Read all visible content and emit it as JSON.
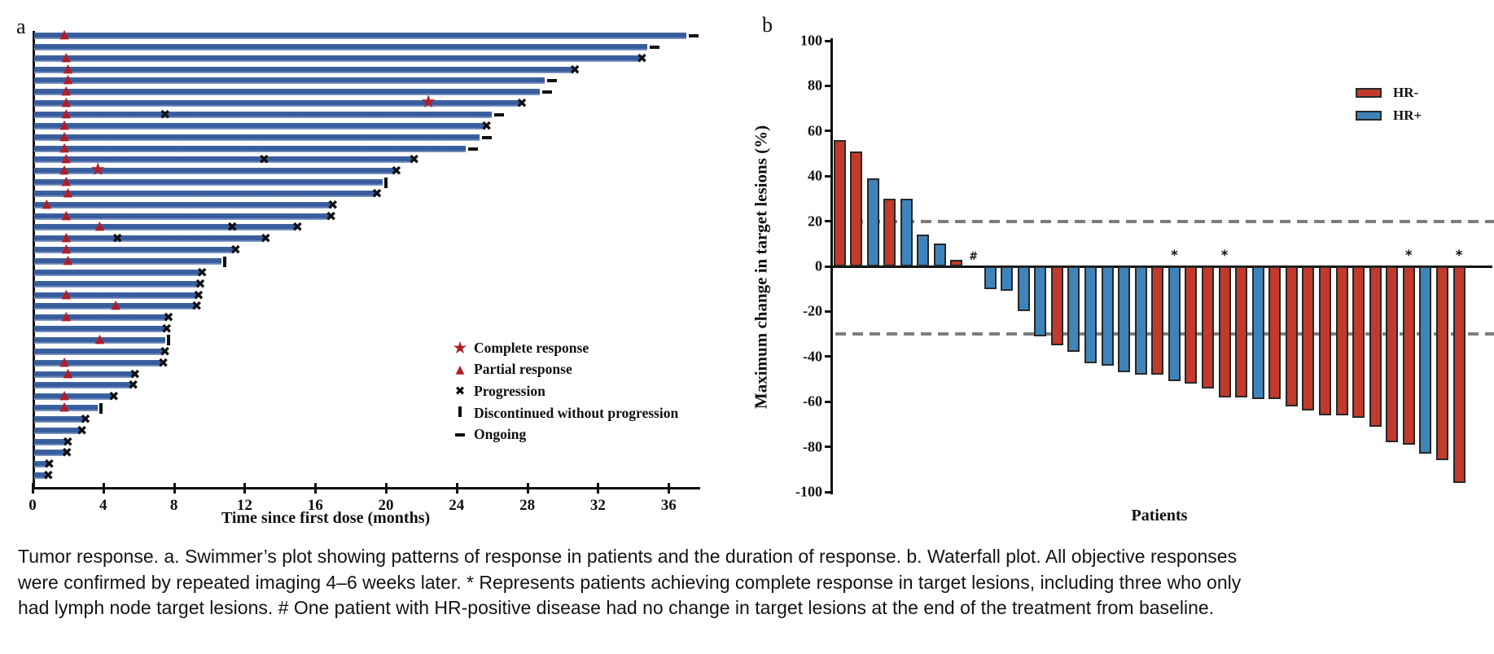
{
  "panel_a": {
    "label": "a",
    "xlabel": "Time since first dose (months)",
    "x_ticks": [
      0,
      4,
      8,
      12,
      16,
      20,
      24,
      28,
      32,
      36
    ],
    "bar_color": "#33589b",
    "marker_color_response": "#b01e28",
    "marker_color_event": "#111111",
    "legend": [
      {
        "glyph": "★",
        "label": "Complete response"
      },
      {
        "glyph": "▲",
        "label": "Partial response"
      },
      {
        "glyph": "✖",
        "label": "Progression"
      },
      {
        "glyph": "bar",
        "label": "Discontinued without progression"
      },
      {
        "glyph": "dash",
        "label": "Ongoing"
      }
    ]
  },
  "panel_b": {
    "label": "b",
    "ylabel": "Maximum change in target lesions (%)",
    "xlabel": "Patients",
    "y_ticks": [
      100,
      80,
      60,
      40,
      20,
      0,
      -20,
      -40,
      -60,
      -80,
      -100
    ],
    "reference_lines": [
      20,
      -30
    ],
    "colors": {
      "HR-": "#c13a2b",
      "HR+": "#3e84ba"
    },
    "legend": [
      {
        "label": "HR-",
        "color": "#c13a2b"
      },
      {
        "label": "HR+",
        "color": "#3e84ba"
      }
    ]
  },
  "caption": {
    "text": "Tumor response. a. Swimmer’s plot showing patterns of response in patients and the duration of response. b. Waterfall plot. All objective responses were confirmed by repeated imaging 4–6 weeks later. * Represents patients achieving complete response in target lesions, including three who only had lymph node target lesions. # One patient with HR-positive disease had no change in target lesions at the end of the treatment from baseline."
  },
  "chart_data": [
    {
      "type": "bar",
      "subtype": "swimmer",
      "title": "Swimmer's plot",
      "xlabel": "Time since first dose (months)",
      "xlim": [
        0,
        38
      ],
      "unit": "months",
      "patients": [
        {
          "duration": 37.0,
          "partial_response_at": 1.8,
          "end_marker": "ongoing"
        },
        {
          "duration": 34.8,
          "end_marker": "ongoing"
        },
        {
          "duration": 34.4,
          "partial_response_at": 1.9,
          "end_marker": "progression"
        },
        {
          "duration": 30.6,
          "partial_response_at": 2.0,
          "end_marker": "progression"
        },
        {
          "duration": 29.0,
          "partial_response_at": 2.0,
          "end_marker": "ongoing"
        },
        {
          "duration": 28.7,
          "partial_response_at": 1.9,
          "end_marker": "ongoing"
        },
        {
          "duration": 27.6,
          "partial_response_at": 1.9,
          "complete_response_at": 22.4,
          "end_marker": "progression"
        },
        {
          "duration": 26.0,
          "partial_response_at": 1.9,
          "progression_at": [
            7.5
          ],
          "end_marker": "ongoing"
        },
        {
          "duration": 25.6,
          "partial_response_at": 1.8,
          "end_marker": "progression"
        },
        {
          "duration": 25.3,
          "partial_response_at": 1.8,
          "end_marker": "ongoing"
        },
        {
          "duration": 24.5,
          "partial_response_at": 1.8,
          "end_marker": "ongoing"
        },
        {
          "duration": 21.5,
          "partial_response_at": 1.9,
          "progression_at": [
            13.1
          ],
          "end_marker": "progression"
        },
        {
          "duration": 20.5,
          "partial_response_at": 1.8,
          "complete_response_at": 3.7,
          "end_marker": "progression"
        },
        {
          "duration": 19.8,
          "partial_response_at": 1.9,
          "end_marker": "discontinued"
        },
        {
          "duration": 19.4,
          "partial_response_at": 2.0,
          "end_marker": "progression"
        },
        {
          "duration": 16.9,
          "partial_response_at": 0.8,
          "end_marker": "progression"
        },
        {
          "duration": 16.8,
          "partial_response_at": 1.9,
          "end_marker": "progression"
        },
        {
          "duration": 14.9,
          "partial_response_at": 3.8,
          "progression_at": [
            11.3
          ],
          "end_marker": "progression"
        },
        {
          "duration": 13.1,
          "partial_response_at": 1.9,
          "progression_at": [
            4.8
          ],
          "end_marker": "progression"
        },
        {
          "duration": 11.4,
          "partial_response_at": 1.9,
          "end_marker": "progression"
        },
        {
          "duration": 10.7,
          "partial_response_at": 2.0,
          "end_marker": "discontinued"
        },
        {
          "duration": 9.5,
          "end_marker": "progression"
        },
        {
          "duration": 9.4,
          "end_marker": "progression"
        },
        {
          "duration": 9.3,
          "partial_response_at": 1.9,
          "end_marker": "progression"
        },
        {
          "duration": 9.2,
          "partial_response_at": 4.7,
          "end_marker": "progression"
        },
        {
          "duration": 7.6,
          "partial_response_at": 1.9,
          "end_marker": "progression"
        },
        {
          "duration": 7.5,
          "end_marker": "progression"
        },
        {
          "duration": 7.5,
          "partial_response_at": 3.8,
          "end_marker": "discontinued"
        },
        {
          "duration": 7.4,
          "end_marker": "progression"
        },
        {
          "duration": 7.3,
          "partial_response_at": 1.8,
          "end_marker": "progression"
        },
        {
          "duration": 5.7,
          "partial_response_at": 2.0,
          "end_marker": "progression"
        },
        {
          "duration": 5.6,
          "end_marker": "progression"
        },
        {
          "duration": 4.5,
          "partial_response_at": 1.8,
          "end_marker": "progression"
        },
        {
          "duration": 3.7,
          "partial_response_at": 1.8,
          "end_marker": "discontinued"
        },
        {
          "duration": 2.9,
          "end_marker": "progression"
        },
        {
          "duration": 2.7,
          "end_marker": "progression"
        },
        {
          "duration": 1.9,
          "end_marker": "progression"
        },
        {
          "duration": 1.85,
          "end_marker": "progression"
        },
        {
          "duration": 0.85,
          "end_marker": "progression"
        },
        {
          "duration": 0.8,
          "end_marker": "progression"
        }
      ]
    },
    {
      "type": "bar",
      "subtype": "waterfall",
      "title": "Waterfall plot",
      "ylabel": "Maximum change in target lesions (%)",
      "xlabel": "Patients",
      "ylim": [
        -100,
        100
      ],
      "reference_lines": [
        20,
        -30
      ],
      "series_key": {
        "HR-": "hormone receptor negative",
        "HR+": "hormone receptor positive"
      },
      "values": [
        56,
        51,
        39,
        30,
        30,
        14,
        10,
        3,
        0,
        -10,
        -11,
        -20,
        -31,
        -35,
        -38,
        -43,
        -44,
        -47,
        -48,
        -48,
        -51,
        -52,
        -54,
        -58,
        -58,
        -59,
        -59,
        -62,
        -64,
        -66,
        -66,
        -67,
        -71,
        -78,
        -79,
        -83,
        -86,
        -96
      ],
      "groups": [
        "HR-",
        "HR-",
        "HR+",
        "HR-",
        "HR+",
        "HR+",
        "HR+",
        "HR-",
        "HR+",
        "HR+",
        "HR+",
        "HR+",
        "HR+",
        "HR-",
        "HR+",
        "HR+",
        "HR+",
        "HR+",
        "HR+",
        "HR-",
        "HR+",
        "HR-",
        "HR-",
        "HR-",
        "HR-",
        "HR+",
        "HR-",
        "HR-",
        "HR-",
        "HR-",
        "HR-",
        "HR-",
        "HR-",
        "HR-",
        "HR-",
        "HR+",
        "HR-",
        "HR-"
      ],
      "star_patients_1based": [
        21,
        24,
        35,
        38
      ],
      "hash_patients_1based": [
        9
      ]
    }
  ]
}
